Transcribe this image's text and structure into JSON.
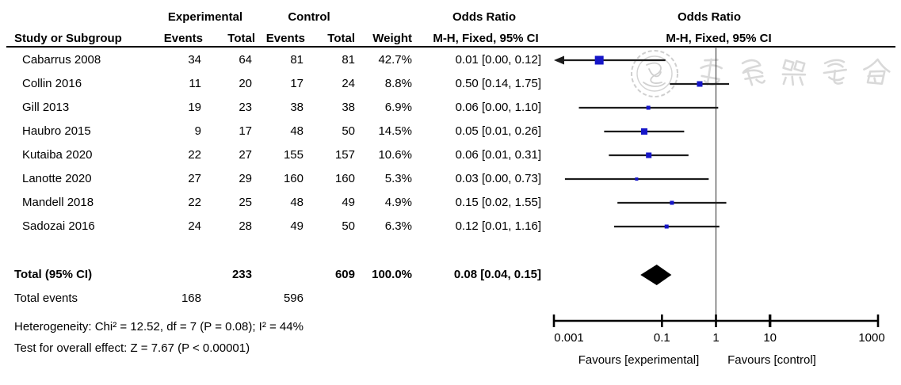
{
  "header": {
    "study_col": "Study or Subgroup",
    "experimental": "Experimental",
    "control": "Control",
    "events": "Events",
    "total": "Total",
    "weight": "Weight",
    "or_text_title": "Odds Ratio",
    "or_plot_title": "Odds Ratio",
    "mh_ci": "M-H, Fixed, 95% CI"
  },
  "watermark": {
    "text": "中華醫學會",
    "style": "faint gray seal with calligraphy characters"
  },
  "chart_data": {
    "type": "scatter",
    "subtype": "forest_plot_meta_analysis",
    "effect_measure": "Odds Ratio, M-H, Fixed, 95% CI",
    "x_scale": "log10",
    "axis": {
      "ticks": [
        0.001,
        0.1,
        1,
        10,
        1000
      ],
      "tick_labels": [
        "0.001",
        "0.1",
        "1",
        "10",
        "1000"
      ],
      "xlim": [
        0.001,
        1000
      ],
      "null_line": 1
    },
    "favours_left": "Favours [experimental]",
    "favours_right": "Favours [control]",
    "marker_color": "#1616C8",
    "diamond_color": "#000000",
    "studies": [
      {
        "name": "Cabarrus 2008",
        "e_events": 34,
        "e_total": 64,
        "c_events": 81,
        "c_total": 81,
        "weight": "42.7%",
        "or_display": "0.01 [0.00, 0.12]",
        "or": 0.0069,
        "ci_low": 0.0004,
        "ci_high": 0.116,
        "marker_size": 11
      },
      {
        "name": "Collin 2016",
        "e_events": 11,
        "e_total": 20,
        "c_events": 17,
        "c_total": 24,
        "weight": "8.8%",
        "or_display": "0.50 [0.14, 1.75]",
        "or": 0.5,
        "ci_low": 0.14,
        "ci_high": 1.75,
        "marker_size": 7
      },
      {
        "name": "Gill 2013",
        "e_events": 19,
        "e_total": 23,
        "c_events": 38,
        "c_total": 38,
        "weight": "6.9%",
        "or_display": "0.06 [0.00, 1.10]",
        "or": 0.056,
        "ci_low": 0.0029,
        "ci_high": 1.1,
        "marker_size": 5
      },
      {
        "name": "Haubro 2015",
        "e_events": 9,
        "e_total": 17,
        "c_events": 48,
        "c_total": 50,
        "weight": "14.5%",
        "or_display": "0.05 [0.01, 0.26]",
        "or": 0.047,
        "ci_low": 0.0085,
        "ci_high": 0.258,
        "marker_size": 8
      },
      {
        "name": "Kutaiba 2020",
        "e_events": 22,
        "e_total": 27,
        "c_events": 155,
        "c_total": 157,
        "weight": "10.6%",
        "or_display": "0.06 [0.01, 0.31]",
        "or": 0.057,
        "ci_low": 0.0104,
        "ci_high": 0.31,
        "marker_size": 7
      },
      {
        "name": "Lanotte 2020",
        "e_events": 27,
        "e_total": 29,
        "c_events": 160,
        "c_total": 160,
        "weight": "5.3%",
        "or_display": "0.03 [0.00, 0.73]",
        "or": 0.034,
        "ci_low": 0.0016,
        "ci_high": 0.734,
        "marker_size": 4
      },
      {
        "name": "Mandell 2018",
        "e_events": 22,
        "e_total": 25,
        "c_events": 48,
        "c_total": 49,
        "weight": "4.9%",
        "or_display": "0.15 [0.02, 1.55]",
        "or": 0.153,
        "ci_low": 0.015,
        "ci_high": 1.554,
        "marker_size": 5
      },
      {
        "name": "Sadozai 2016",
        "e_events": 24,
        "e_total": 28,
        "c_events": 49,
        "c_total": 50,
        "weight": "6.3%",
        "or_display": "0.12 [0.01, 1.16]",
        "or": 0.122,
        "ci_low": 0.013,
        "ci_high": 1.156,
        "marker_size": 5
      }
    ],
    "total_row": {
      "label": "Total (95% CI)",
      "e_total": 233,
      "c_total": 609,
      "weight": "100.0%",
      "or_display": "0.08 [0.04, 0.15]",
      "or": 0.08,
      "ci_low": 0.04,
      "ci_high": 0.15
    },
    "total_events": {
      "label": "Total events",
      "experimental": 168,
      "control": 596
    },
    "heterogeneity": "Heterogeneity: Chi² = 12.52, df = 7 (P = 0.08); I² = 44%",
    "overall_effect": "Test for overall effect: Z = 7.67 (P < 0.00001)"
  }
}
